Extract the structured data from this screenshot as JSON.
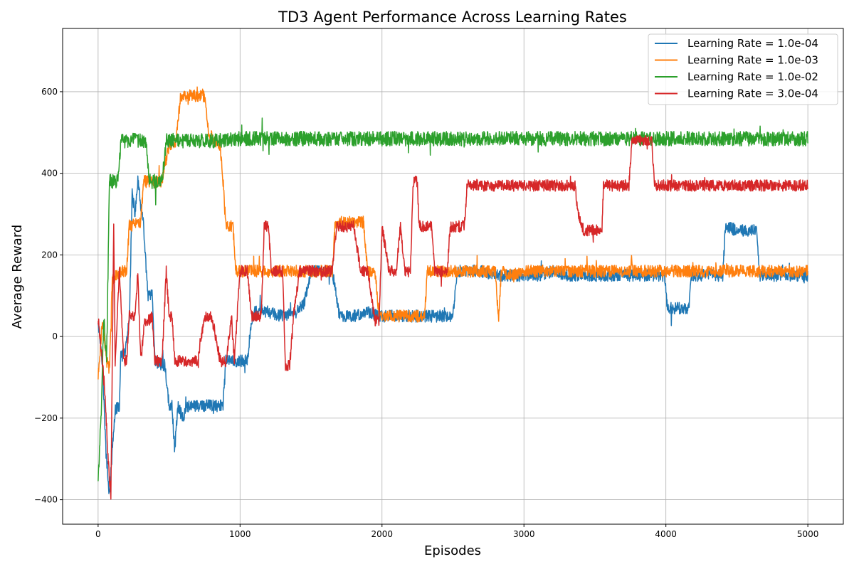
{
  "chart_data": {
    "type": "line",
    "title": "TD3 Agent Performance Across Learning Rates",
    "xlabel": "Episodes",
    "ylabel": "Average Reward",
    "xlim": [
      -250,
      5250
    ],
    "ylim": [
      -460,
      755
    ],
    "xticks": [
      0,
      1000,
      2000,
      3000,
      4000,
      5000
    ],
    "xtick_labels": [
      "0",
      "1000",
      "2000",
      "3000",
      "4000",
      "5000"
    ],
    "yticks": [
      -400,
      -200,
      0,
      200,
      400,
      600
    ],
    "ytick_labels": [
      "−400",
      "−200",
      "0",
      "200",
      "400",
      "600"
    ],
    "grid": true,
    "legend_position": "top-right",
    "series": [
      {
        "name": "Learning Rate = 1.0e-04",
        "color": "#1f77b4",
        "noise": 15,
        "values": [
          [
            0,
            40
          ],
          [
            30,
            -60
          ],
          [
            55,
            -280
          ],
          [
            80,
            -390
          ],
          [
            100,
            -280
          ],
          [
            120,
            -180
          ],
          [
            150,
            -170
          ],
          [
            160,
            -50
          ],
          [
            190,
            -40
          ],
          [
            220,
            40
          ],
          [
            240,
            350
          ],
          [
            260,
            300
          ],
          [
            280,
            380
          ],
          [
            320,
            270
          ],
          [
            350,
            100
          ],
          [
            380,
            100
          ],
          [
            400,
            -60
          ],
          [
            450,
            -70
          ],
          [
            470,
            -70
          ],
          [
            500,
            -170
          ],
          [
            520,
            -170
          ],
          [
            540,
            -280
          ],
          [
            560,
            -170
          ],
          [
            600,
            -200
          ],
          [
            620,
            -170
          ],
          [
            700,
            -170
          ],
          [
            800,
            -170
          ],
          [
            880,
            -170
          ],
          [
            900,
            -60
          ],
          [
            1000,
            -60
          ],
          [
            1050,
            -60
          ],
          [
            1080,
            30
          ],
          [
            1100,
            60
          ],
          [
            1200,
            60
          ],
          [
            1300,
            50
          ],
          [
            1400,
            60
          ],
          [
            1450,
            80
          ],
          [
            1500,
            160
          ],
          [
            1600,
            160
          ],
          [
            1650,
            160
          ],
          [
            1700,
            50
          ],
          [
            1800,
            50
          ],
          [
            1900,
            60
          ],
          [
            2000,
            50
          ],
          [
            2100,
            50
          ],
          [
            2200,
            50
          ],
          [
            2300,
            50
          ],
          [
            2400,
            50
          ],
          [
            2500,
            50
          ],
          [
            2530,
            160
          ],
          [
            2600,
            160
          ],
          [
            2700,
            160
          ],
          [
            2800,
            150
          ],
          [
            2900,
            150
          ],
          [
            3000,
            150
          ],
          [
            3100,
            150
          ],
          [
            3200,
            160
          ],
          [
            3300,
            150
          ],
          [
            3400,
            150
          ],
          [
            3500,
            150
          ],
          [
            3600,
            150
          ],
          [
            3700,
            150
          ],
          [
            3800,
            150
          ],
          [
            3900,
            150
          ],
          [
            3990,
            150
          ],
          [
            4010,
            70
          ],
          [
            4100,
            70
          ],
          [
            4160,
            70
          ],
          [
            4180,
            150
          ],
          [
            4300,
            150
          ],
          [
            4400,
            150
          ],
          [
            4420,
            270
          ],
          [
            4500,
            260
          ],
          [
            4640,
            260
          ],
          [
            4660,
            150
          ],
          [
            4700,
            150
          ],
          [
            4800,
            150
          ],
          [
            4900,
            150
          ],
          [
            5000,
            150
          ]
        ]
      },
      {
        "name": "Learning Rate = 1.0e-03",
        "color": "#ff7f0e",
        "noise": 15,
        "values": [
          [
            0,
            -100
          ],
          [
            30,
            40
          ],
          [
            60,
            -60
          ],
          [
            80,
            -80
          ],
          [
            100,
            140
          ],
          [
            150,
            160
          ],
          [
            200,
            160
          ],
          [
            220,
            270
          ],
          [
            280,
            280
          ],
          [
            300,
            280
          ],
          [
            320,
            380
          ],
          [
            400,
            380
          ],
          [
            450,
            380
          ],
          [
            500,
            470
          ],
          [
            550,
            480
          ],
          [
            580,
            590
          ],
          [
            650,
            590
          ],
          [
            700,
            590
          ],
          [
            750,
            590
          ],
          [
            780,
            500
          ],
          [
            820,
            480
          ],
          [
            860,
            470
          ],
          [
            880,
            380
          ],
          [
            900,
            270
          ],
          [
            950,
            270
          ],
          [
            970,
            160
          ],
          [
            1000,
            160
          ],
          [
            1100,
            160
          ],
          [
            1200,
            160
          ],
          [
            1300,
            160
          ],
          [
            1400,
            160
          ],
          [
            1500,
            160
          ],
          [
            1600,
            160
          ],
          [
            1650,
            160
          ],
          [
            1670,
            280
          ],
          [
            1800,
            280
          ],
          [
            1870,
            280
          ],
          [
            1900,
            160
          ],
          [
            1950,
            160
          ],
          [
            1980,
            50
          ],
          [
            2100,
            50
          ],
          [
            2200,
            50
          ],
          [
            2300,
            50
          ],
          [
            2320,
            160
          ],
          [
            2400,
            160
          ],
          [
            2500,
            160
          ],
          [
            2600,
            160
          ],
          [
            2700,
            160
          ],
          [
            2800,
            160
          ],
          [
            2820,
            40
          ],
          [
            2840,
            160
          ],
          [
            2900,
            150
          ],
          [
            3000,
            160
          ],
          [
            3100,
            160
          ],
          [
            3200,
            160
          ],
          [
            3300,
            160
          ],
          [
            3400,
            160
          ],
          [
            3500,
            160
          ],
          [
            3600,
            160
          ],
          [
            3700,
            160
          ],
          [
            3750,
            160
          ],
          [
            3760,
            190
          ],
          [
            3770,
            160
          ],
          [
            3800,
            160
          ],
          [
            3900,
            160
          ],
          [
            4000,
            160
          ],
          [
            4100,
            160
          ],
          [
            4200,
            160
          ],
          [
            4300,
            160
          ],
          [
            4400,
            160
          ],
          [
            4500,
            160
          ],
          [
            4600,
            160
          ],
          [
            4700,
            160
          ],
          [
            4800,
            160
          ],
          [
            4900,
            160
          ],
          [
            5000,
            160
          ]
        ]
      },
      {
        "name": "Learning Rate = 1.0e-02",
        "color": "#2ca02c",
        "noise": 18,
        "values": [
          [
            0,
            -350
          ],
          [
            20,
            -200
          ],
          [
            40,
            50
          ],
          [
            60,
            -60
          ],
          [
            80,
            380
          ],
          [
            100,
            380
          ],
          [
            140,
            380
          ],
          [
            160,
            480
          ],
          [
            200,
            480
          ],
          [
            250,
            480
          ],
          [
            300,
            480
          ],
          [
            340,
            480
          ],
          [
            360,
            380
          ],
          [
            400,
            380
          ],
          [
            450,
            380
          ],
          [
            480,
            480
          ],
          [
            500,
            480
          ],
          [
            600,
            480
          ],
          [
            700,
            480
          ],
          [
            800,
            480
          ],
          [
            900,
            480
          ],
          [
            1000,
            485
          ],
          [
            1200,
            485
          ],
          [
            1400,
            485
          ],
          [
            1600,
            485
          ],
          [
            1800,
            485
          ],
          [
            2000,
            485
          ],
          [
            2200,
            485
          ],
          [
            2400,
            485
          ],
          [
            2600,
            485
          ],
          [
            2800,
            485
          ],
          [
            3000,
            485
          ],
          [
            3200,
            485
          ],
          [
            3400,
            485
          ],
          [
            3600,
            485
          ],
          [
            3800,
            485
          ],
          [
            4000,
            485
          ],
          [
            4200,
            485
          ],
          [
            4400,
            485
          ],
          [
            4600,
            485
          ],
          [
            4800,
            485
          ],
          [
            5000,
            485
          ]
        ]
      },
      {
        "name": "Learning Rate = 3.0e-04",
        "color": "#d62728",
        "noise": 14,
        "values": [
          [
            0,
            40
          ],
          [
            30,
            -60
          ],
          [
            50,
            -150
          ],
          [
            70,
            -300
          ],
          [
            90,
            -390
          ],
          [
            110,
            280
          ],
          [
            120,
            -60
          ],
          [
            150,
            160
          ],
          [
            180,
            -60
          ],
          [
            200,
            -60
          ],
          [
            220,
            50
          ],
          [
            260,
            50
          ],
          [
            280,
            160
          ],
          [
            300,
            -60
          ],
          [
            330,
            40
          ],
          [
            360,
            40
          ],
          [
            380,
            50
          ],
          [
            400,
            -60
          ],
          [
            450,
            -60
          ],
          [
            480,
            160
          ],
          [
            500,
            50
          ],
          [
            520,
            50
          ],
          [
            540,
            -60
          ],
          [
            600,
            -60
          ],
          [
            620,
            -60
          ],
          [
            660,
            -60
          ],
          [
            700,
            -60
          ],
          [
            750,
            50
          ],
          [
            800,
            50
          ],
          [
            860,
            -60
          ],
          [
            900,
            -60
          ],
          [
            940,
            50
          ],
          [
            960,
            -60
          ],
          [
            1000,
            160
          ],
          [
            1050,
            160
          ],
          [
            1080,
            50
          ],
          [
            1100,
            50
          ],
          [
            1150,
            50
          ],
          [
            1170,
            270
          ],
          [
            1200,
            270
          ],
          [
            1220,
            160
          ],
          [
            1280,
            160
          ],
          [
            1300,
            160
          ],
          [
            1320,
            -70
          ],
          [
            1350,
            -70
          ],
          [
            1380,
            60
          ],
          [
            1420,
            160
          ],
          [
            1500,
            160
          ],
          [
            1550,
            160
          ],
          [
            1600,
            160
          ],
          [
            1650,
            160
          ],
          [
            1680,
            270
          ],
          [
            1750,
            270
          ],
          [
            1800,
            270
          ],
          [
            1850,
            160
          ],
          [
            1900,
            160
          ],
          [
            1950,
            40
          ],
          [
            1980,
            40
          ],
          [
            2000,
            270
          ],
          [
            2050,
            160
          ],
          [
            2100,
            160
          ],
          [
            2130,
            270
          ],
          [
            2160,
            160
          ],
          [
            2200,
            160
          ],
          [
            2220,
            380
          ],
          [
            2250,
            380
          ],
          [
            2260,
            270
          ],
          [
            2300,
            270
          ],
          [
            2350,
            270
          ],
          [
            2370,
            160
          ],
          [
            2420,
            160
          ],
          [
            2460,
            160
          ],
          [
            2480,
            270
          ],
          [
            2540,
            270
          ],
          [
            2580,
            270
          ],
          [
            2600,
            370
          ],
          [
            2700,
            370
          ],
          [
            2800,
            370
          ],
          [
            2900,
            370
          ],
          [
            3000,
            370
          ],
          [
            3100,
            370
          ],
          [
            3200,
            370
          ],
          [
            3300,
            370
          ],
          [
            3360,
            370
          ],
          [
            3380,
            300
          ],
          [
            3420,
            260
          ],
          [
            3480,
            260
          ],
          [
            3550,
            260
          ],
          [
            3560,
            370
          ],
          [
            3600,
            370
          ],
          [
            3700,
            370
          ],
          [
            3740,
            370
          ],
          [
            3760,
            480
          ],
          [
            3800,
            480
          ],
          [
            3900,
            480
          ],
          [
            3920,
            370
          ],
          [
            4000,
            370
          ],
          [
            4100,
            370
          ],
          [
            4200,
            370
          ],
          [
            4300,
            370
          ],
          [
            4400,
            370
          ],
          [
            4500,
            370
          ],
          [
            4600,
            370
          ],
          [
            4700,
            370
          ],
          [
            4800,
            370
          ],
          [
            4900,
            370
          ],
          [
            5000,
            370
          ]
        ]
      }
    ]
  }
}
